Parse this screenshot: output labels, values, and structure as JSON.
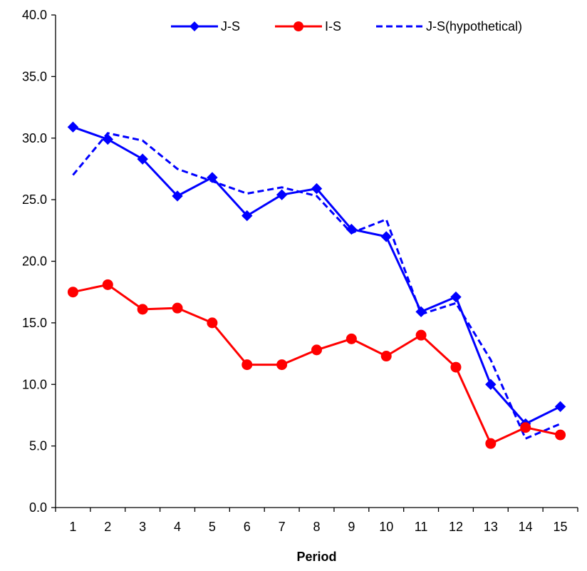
{
  "chart_data": {
    "type": "line",
    "title": "",
    "xlabel": "Period",
    "ylabel": "",
    "categories": [
      "1",
      "2",
      "3",
      "4",
      "5",
      "6",
      "7",
      "8",
      "9",
      "10",
      "11",
      "12",
      "13",
      "14",
      "15"
    ],
    "ylim": [
      0,
      40
    ],
    "yticks": [
      "0.0",
      "5.0",
      "10.0",
      "15.0",
      "20.0",
      "25.0",
      "30.0",
      "35.0",
      "40.0"
    ],
    "grid": false,
    "legend_position": "top",
    "series": [
      {
        "name": "J-S",
        "color": "#0000ff",
        "line_style": "solid",
        "marker": "diamond",
        "values": [
          30.9,
          29.9,
          28.3,
          25.3,
          26.8,
          23.7,
          25.4,
          25.9,
          22.6,
          22.0,
          15.9,
          17.1,
          10.0,
          6.8,
          8.2
        ]
      },
      {
        "name": "I-S",
        "color": "#ff0000",
        "line_style": "solid",
        "marker": "circle",
        "values": [
          17.5,
          18.1,
          16.1,
          16.2,
          15.0,
          11.6,
          11.6,
          12.8,
          13.7,
          12.3,
          14.0,
          11.4,
          5.2,
          6.5,
          5.9
        ]
      },
      {
        "name": "J-S(hypothetical)",
        "color": "#0000ff",
        "line_style": "dashed",
        "marker": "none",
        "values": [
          27.0,
          30.4,
          29.8,
          27.5,
          26.5,
          25.5,
          26.0,
          25.3,
          22.3,
          23.4,
          15.7,
          16.6,
          12.0,
          5.6,
          6.8
        ]
      }
    ]
  }
}
